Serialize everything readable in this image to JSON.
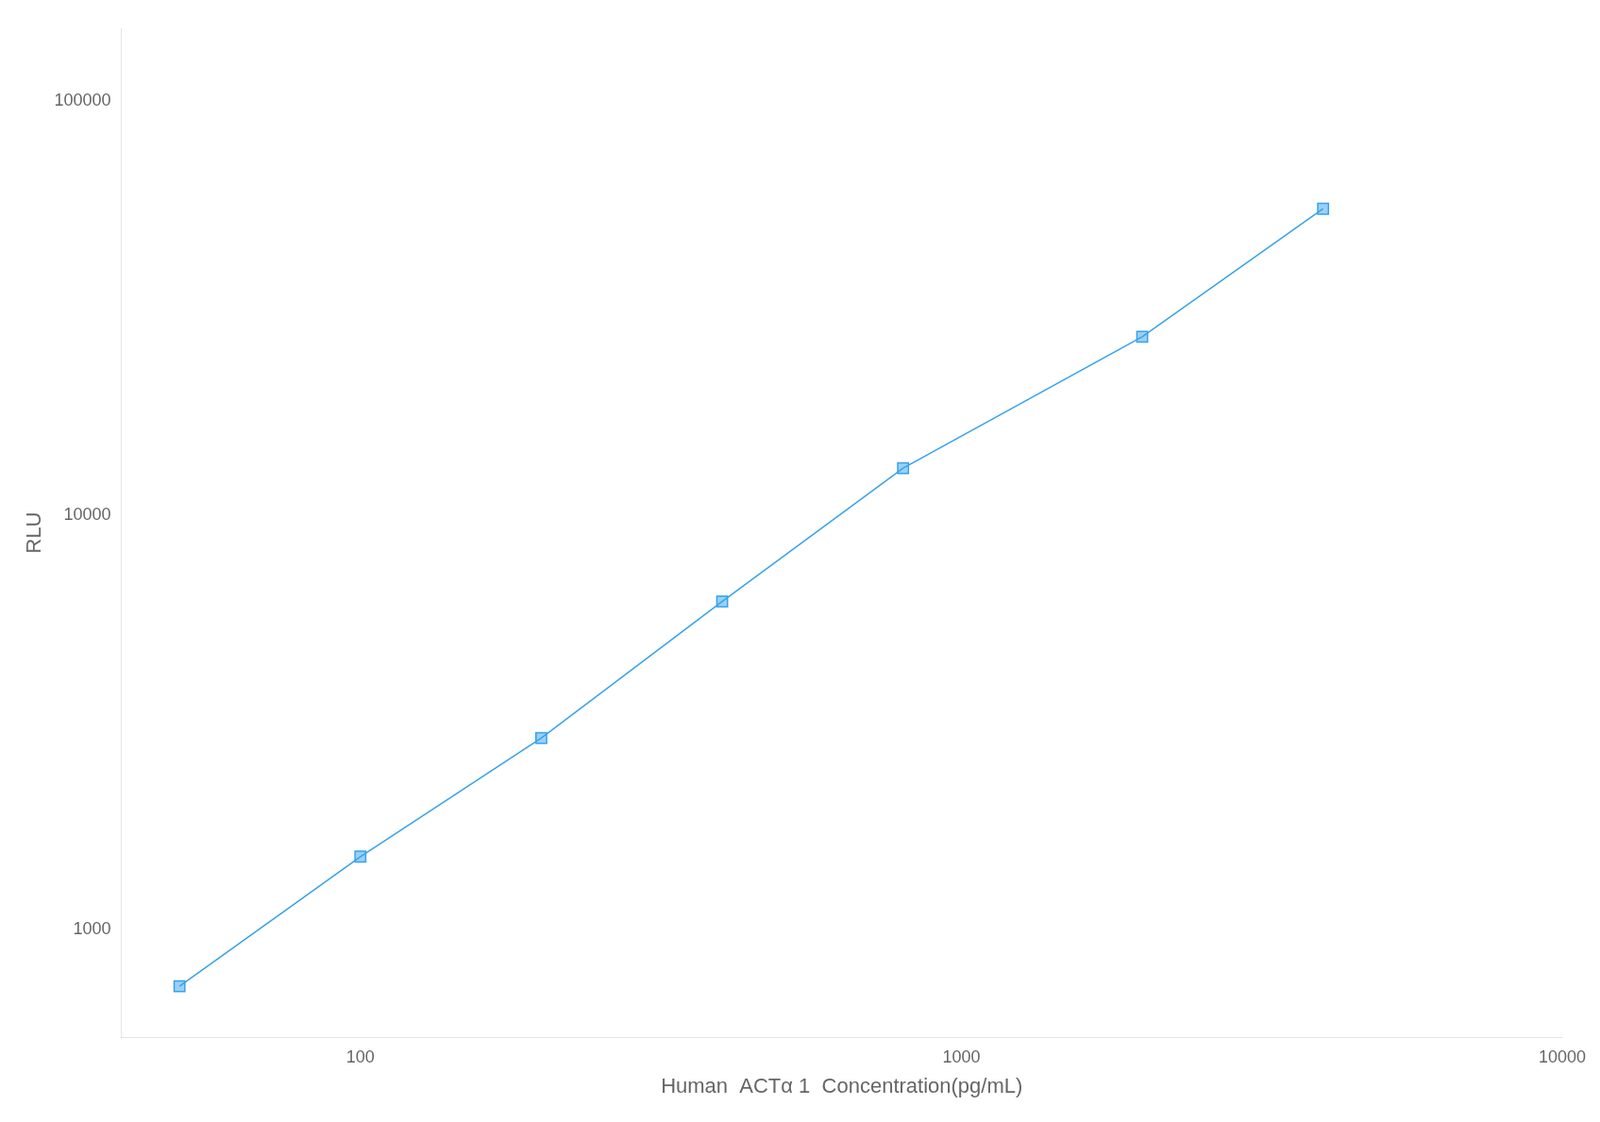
{
  "chart_data": {
    "type": "line",
    "x": [
      50,
      100,
      200,
      400,
      800,
      2000,
      4000
    ],
    "values": [
      730,
      1500,
      2900,
      6200,
      13000,
      27000,
      55000
    ],
    "xlabel": "Human  ACTα 1  Concentration(pg/mL)",
    "ylabel": "RLU",
    "xlim": [
      40,
      10000
    ],
    "ylim": [
      550,
      150000
    ],
    "xticks": [
      100,
      1000,
      10000
    ],
    "yticks": [
      1000,
      10000,
      100000
    ],
    "log": true,
    "grid": false,
    "marker": "square"
  }
}
